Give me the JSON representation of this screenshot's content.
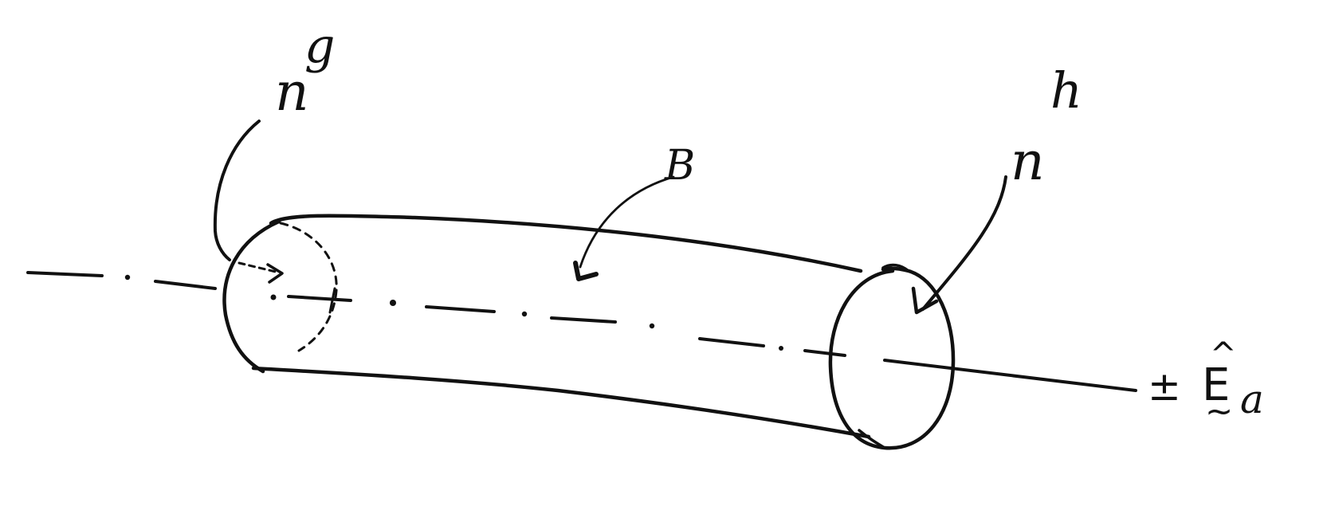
{
  "labels": {
    "left_end": {
      "base": "n",
      "superscript": "g"
    },
    "right_end": {
      "base": "n",
      "superscript": "h"
    },
    "body": "B",
    "axis": {
      "sign": "±",
      "vector": "E",
      "hat": "^",
      "tilde": "~",
      "subscript": "a"
    }
  },
  "colors": {
    "ink": "#111111",
    "background": "#ffffff"
  }
}
